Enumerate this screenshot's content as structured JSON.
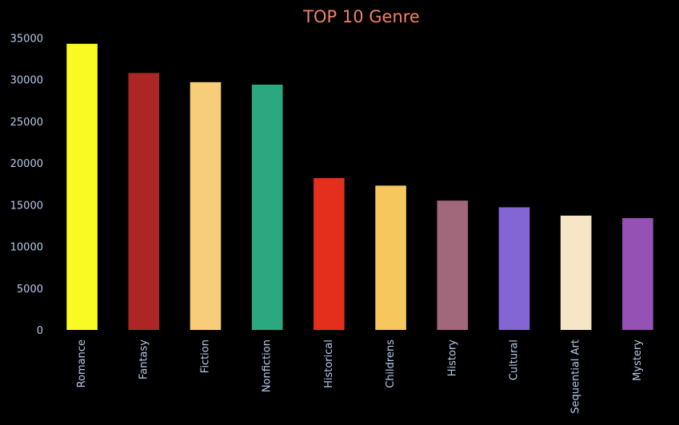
{
  "colors": {
    "background": "#000000",
    "title": "#f0826b",
    "tick_label": "#b7c9e8"
  },
  "chart_data": {
    "type": "bar",
    "title": "TOP 10 Genre",
    "xlabel": "",
    "ylabel": "",
    "categories": [
      "Romance",
      "Fantasy",
      "Fiction",
      "Nonfiction",
      "Historical",
      "Childrens",
      "History",
      "Cultural",
      "Sequential Art",
      "Mystery"
    ],
    "values": [
      34300,
      30800,
      29700,
      29400,
      18200,
      17300,
      15500,
      14700,
      13700,
      13400
    ],
    "bar_colors": [
      "#f9f923",
      "#ac2626",
      "#f7cd79",
      "#2ca880",
      "#e42f1c",
      "#f5c75c",
      "#a0687a",
      "#8366d4",
      "#f7e5c7",
      "#9552b4"
    ],
    "ylim": [
      0,
      35000
    ],
    "yticks": [
      0,
      5000,
      10000,
      15000,
      20000,
      25000,
      30000,
      35000
    ],
    "grid": false,
    "legend": "none"
  }
}
